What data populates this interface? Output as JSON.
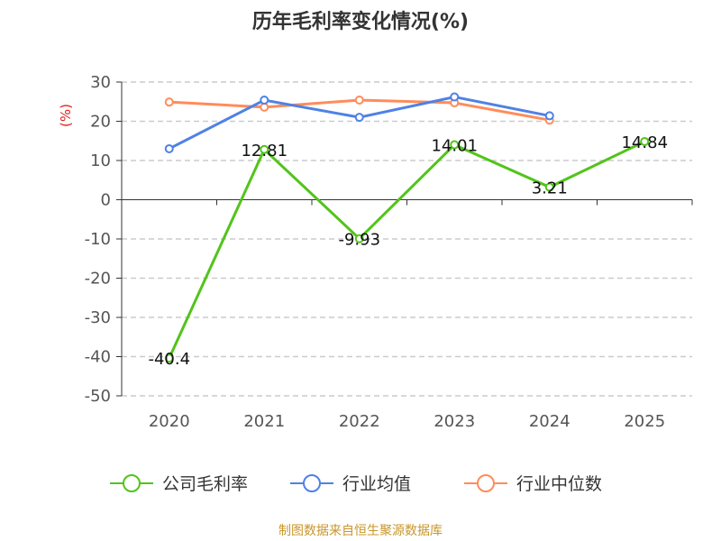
{
  "chart_data": {
    "type": "line",
    "title": "历年毛利率变化情况(%)",
    "ylabel": "(%)",
    "categories": [
      "2020",
      "2021",
      "2022",
      "2023",
      "2024",
      "2025"
    ],
    "ylim": [
      -50,
      30
    ],
    "yticks": [
      30,
      20,
      10,
      0,
      -10,
      -20,
      -30,
      -40,
      -50
    ],
    "grid": true,
    "legend_position": "bottom",
    "series": [
      {
        "name": "公司毛利率",
        "color": "#52c41a",
        "values": [
          -40.4,
          12.81,
          -9.93,
          14.01,
          3.21,
          14.84
        ],
        "labels": [
          "-40.4",
          "12.81",
          "-9.93",
          "14.01",
          "3.21",
          "14.84"
        ]
      },
      {
        "name": "行业均值",
        "color": "#4f81e6",
        "values": [
          13.0,
          25.4,
          21.0,
          26.2,
          21.4,
          null
        ]
      },
      {
        "name": "行业中位数",
        "color": "#ff8c5a",
        "values": [
          24.9,
          23.6,
          25.4,
          24.7,
          20.3,
          null
        ]
      }
    ]
  },
  "source": "制图数据来自恒生聚源数据库"
}
